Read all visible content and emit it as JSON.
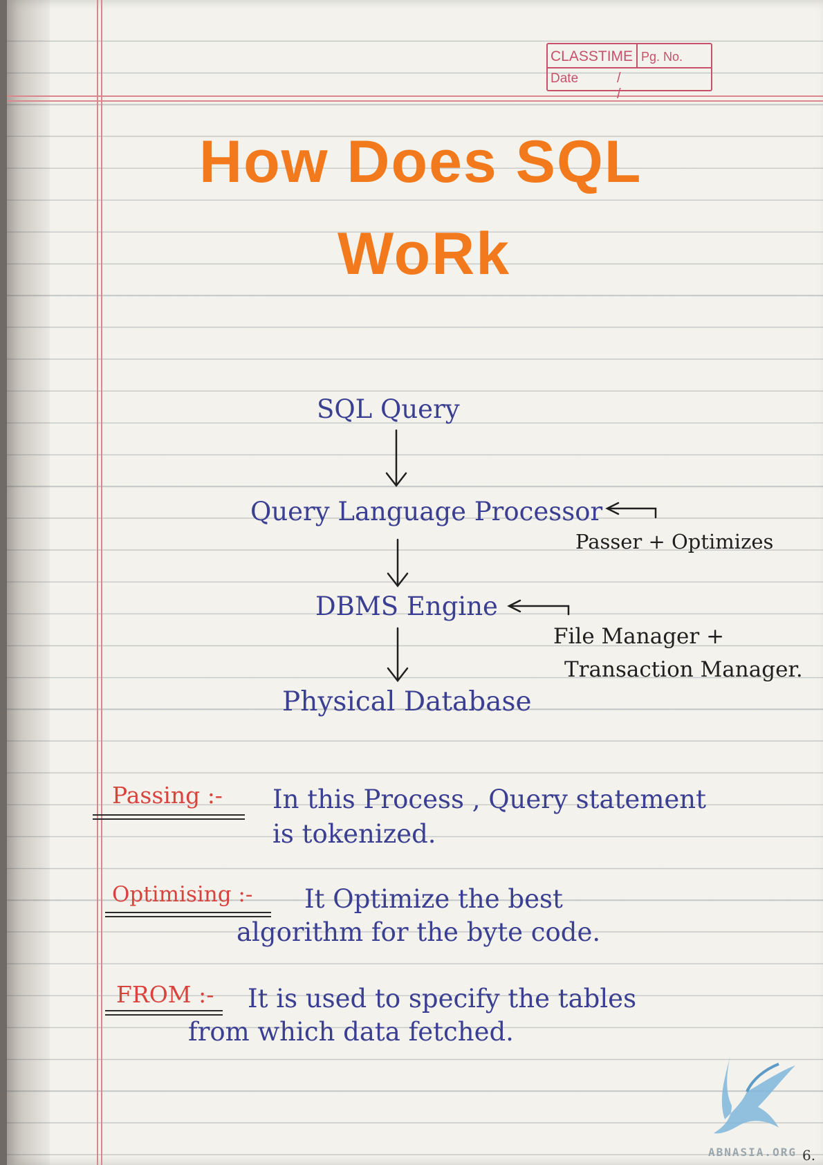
{
  "header_box": {
    "brand": "CLASSTIME",
    "page_label": "Pg. No.",
    "date_label": "Date",
    "date_slashes": "/ /"
  },
  "title": {
    "line1": "How Does SQL",
    "line2": "WoRk"
  },
  "flow": {
    "step1": "SQL Query",
    "step2": "Query Language Processor",
    "step2_note": "Passer + Optimizes",
    "step3": "DBMS Engine",
    "step3_note_line1": "File Manager +",
    "step3_note_line2": "Transaction Manager.",
    "step4": "Physical Database"
  },
  "definitions": [
    {
      "term": "Passing :-",
      "line1": "In this Process , Query statement",
      "line2": "is tokenized."
    },
    {
      "term": "Optimising :-",
      "line1": "It Optimize the best",
      "line2": "algorithm for the byte code."
    },
    {
      "term": "FROM :-",
      "line1": "It is used to specify the tables",
      "line2": "from which data fetched."
    }
  ],
  "watermark": "ABNASIA.ORG",
  "page_number": "6."
}
